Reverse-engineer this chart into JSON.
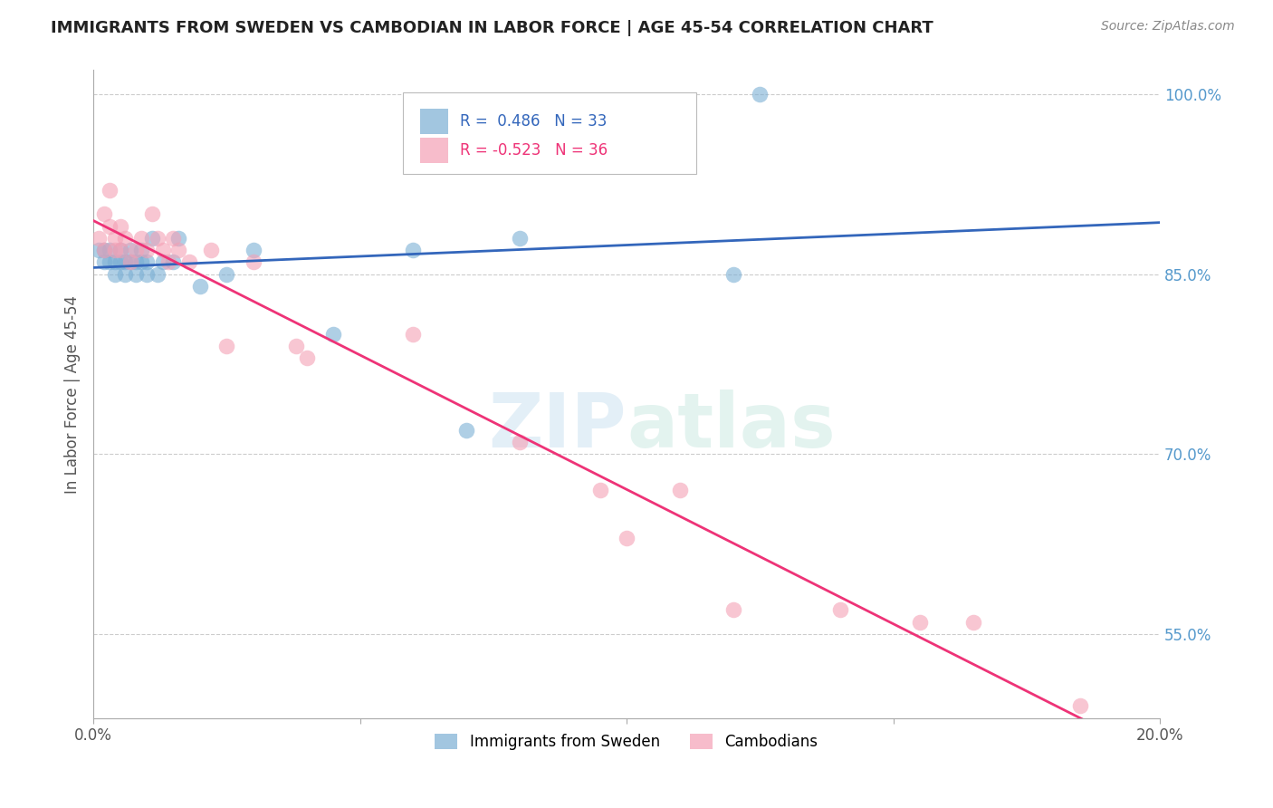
{
  "title": "IMMIGRANTS FROM SWEDEN VS CAMBODIAN IN LABOR FORCE | AGE 45-54 CORRELATION CHART",
  "source": "Source: ZipAtlas.com",
  "ylabel": "In Labor Force | Age 45-54",
  "xlim": [
    0.0,
    0.2
  ],
  "ylim": [
    0.48,
    1.02
  ],
  "yticks": [
    0.55,
    0.7,
    0.85,
    1.0
  ],
  "watermark": "ZIPatlas",
  "legend_entries": [
    "Immigrants from Sweden",
    "Cambodians"
  ],
  "R_sweden": 0.486,
  "N_sweden": 33,
  "R_cambodian": -0.523,
  "N_cambodian": 36,
  "sweden_color": "#7BAFD4",
  "cambodian_color": "#F4A0B5",
  "sweden_line_color": "#3366BB",
  "cambodian_line_color": "#EE3377",
  "background_color": "#ffffff",
  "grid_color": "#cccccc",
  "sweden_x": [
    0.001,
    0.002,
    0.002,
    0.003,
    0.003,
    0.004,
    0.004,
    0.005,
    0.005,
    0.006,
    0.006,
    0.007,
    0.007,
    0.008,
    0.008,
    0.009,
    0.009,
    0.01,
    0.01,
    0.011,
    0.012,
    0.013,
    0.015,
    0.016,
    0.02,
    0.025,
    0.03,
    0.045,
    0.06,
    0.07,
    0.08,
    0.12,
    0.125
  ],
  "sweden_y": [
    0.87,
    0.86,
    0.87,
    0.86,
    0.87,
    0.85,
    0.86,
    0.86,
    0.87,
    0.85,
    0.86,
    0.86,
    0.87,
    0.85,
    0.86,
    0.86,
    0.87,
    0.85,
    0.86,
    0.88,
    0.85,
    0.86,
    0.86,
    0.88,
    0.84,
    0.85,
    0.87,
    0.8,
    0.87,
    0.72,
    0.88,
    0.85,
    1.0
  ],
  "cambodian_x": [
    0.001,
    0.002,
    0.002,
    0.003,
    0.003,
    0.004,
    0.004,
    0.005,
    0.005,
    0.006,
    0.007,
    0.008,
    0.009,
    0.01,
    0.011,
    0.012,
    0.013,
    0.014,
    0.015,
    0.016,
    0.018,
    0.022,
    0.025,
    0.03,
    0.038,
    0.04,
    0.06,
    0.08,
    0.095,
    0.1,
    0.11,
    0.12,
    0.14,
    0.155,
    0.165,
    0.185
  ],
  "cambodian_y": [
    0.88,
    0.87,
    0.9,
    0.89,
    0.92,
    0.88,
    0.87,
    0.89,
    0.87,
    0.88,
    0.86,
    0.87,
    0.88,
    0.87,
    0.9,
    0.88,
    0.87,
    0.86,
    0.88,
    0.87,
    0.86,
    0.87,
    0.79,
    0.86,
    0.79,
    0.78,
    0.8,
    0.71,
    0.67,
    0.63,
    0.67,
    0.57,
    0.57,
    0.56,
    0.56,
    0.49
  ]
}
